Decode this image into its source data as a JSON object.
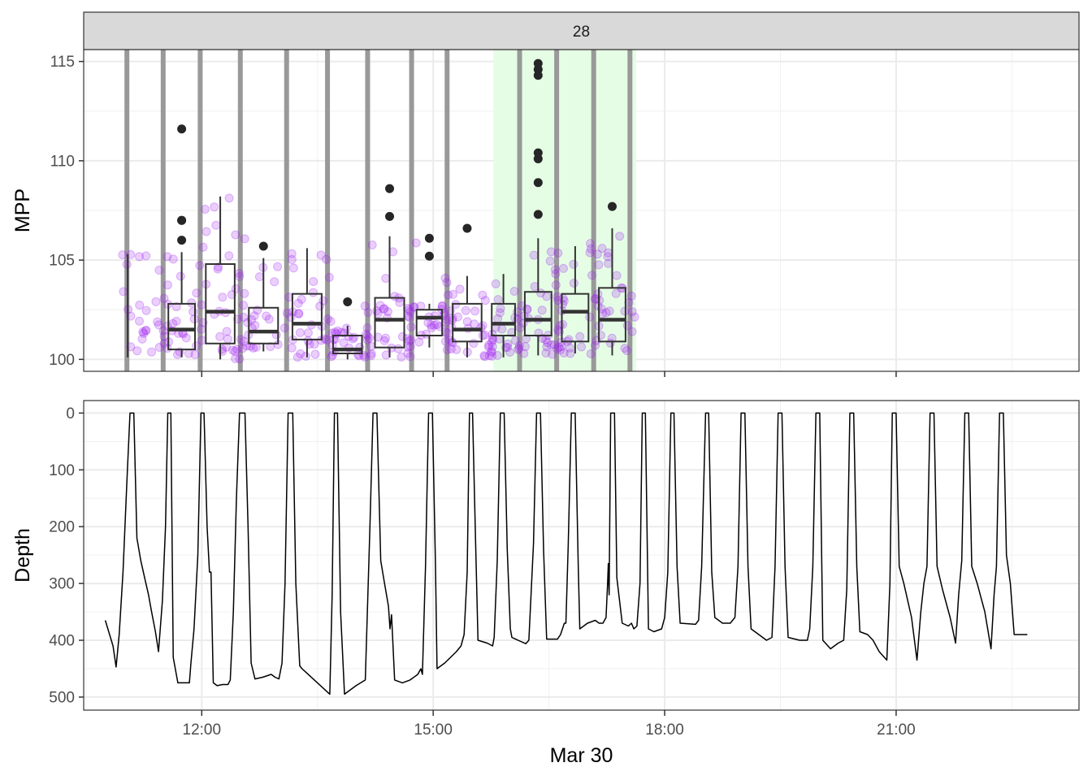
{
  "chart_data": [
    {
      "type": "box",
      "strip_label": "28",
      "ylabel": "MPP",
      "ylim": [
        99.4,
        115.6
      ],
      "yticks": [
        100,
        105,
        110,
        115
      ],
      "x_unit": "hours since 00:00 Mar 30",
      "xlim": [
        10.47,
        23.37
      ],
      "grid": true,
      "highlight_band": {
        "x0": 15.78,
        "x1": 17.63,
        "color": "#e5fde5"
      },
      "surfacing_lines": [
        11.03,
        11.5,
        11.98,
        12.5,
        13.1,
        13.63,
        14.15,
        14.72,
        15.18,
        16.12,
        16.6,
        17.08,
        17.55
      ],
      "box_color": "#333333",
      "point_color": "#a020f0",
      "boxes": [
        {
          "x": 11.03,
          "min": 100.1,
          "q1": null,
          "median": null,
          "q3": null,
          "max": 105.3,
          "outliers": []
        },
        {
          "x": 11.5,
          "min": 100.1,
          "q1": 100.5,
          "median": 101.5,
          "q3": 102.8,
          "max": 105.4,
          "outliers": [
            106.0,
            107.0,
            107.0,
            111.6
          ]
        },
        {
          "x": 11.98,
          "min": 100.0,
          "q1": 100.8,
          "median": 102.4,
          "q3": 104.8,
          "max": 108.2,
          "outliers": []
        },
        {
          "x": 12.5,
          "min": 100.4,
          "q1": 100.8,
          "median": 101.4,
          "q3": 102.6,
          "max": 105.1,
          "outliers": [
            105.7
          ]
        },
        {
          "x": 13.1,
          "min": 100.1,
          "q1": 101.0,
          "median": 101.8,
          "q3": 103.3,
          "max": 105.6,
          "outliers": []
        },
        {
          "x": 13.63,
          "min": 100.0,
          "q1": 100.3,
          "median": 100.5,
          "q3": 101.2,
          "max": 101.7,
          "outliers": [
            102.9
          ]
        },
        {
          "x": 14.15,
          "min": 100.1,
          "q1": 100.6,
          "median": 102.0,
          "q3": 103.1,
          "max": 106.2,
          "outliers": [
            107.2,
            108.6
          ]
        },
        {
          "x": 14.72,
          "min": 100.6,
          "q1": 101.2,
          "median": 102.1,
          "q3": 102.5,
          "max": 102.8,
          "outliers": [
            105.2,
            106.1
          ]
        },
        {
          "x": 15.18,
          "min": 100.1,
          "q1": 100.9,
          "median": 101.5,
          "q3": 102.8,
          "max": 104.2,
          "outliers": [
            106.6
          ]
        },
        {
          "x": 15.7,
          "min": 100.1,
          "q1": 101.2,
          "median": 101.8,
          "q3": 102.8,
          "max": 104.3,
          "outliers": []
        },
        {
          "x": 16.12,
          "min": 100.2,
          "q1": 101.2,
          "median": 102.0,
          "q3": 103.4,
          "max": 106.1,
          "outliers": [
            107.3,
            108.9,
            110.1,
            110.4,
            114.3,
            114.6,
            114.9
          ]
        },
        {
          "x": 16.6,
          "min": 100.3,
          "q1": 100.9,
          "median": 102.4,
          "q3": 103.3,
          "max": 105.7,
          "outliers": []
        },
        {
          "x": 17.08,
          "min": 100.2,
          "q1": 100.9,
          "median": 102.0,
          "q3": 103.6,
          "max": 106.6,
          "outliers": [
            107.7
          ]
        }
      ]
    },
    {
      "type": "line",
      "ylabel": "Depth",
      "xlabel": "Mar 30",
      "ylim": [
        523,
        -22
      ],
      "yticks": [
        0,
        100,
        200,
        300,
        400,
        500
      ],
      "x_unit": "hours since 00:00 Mar 30",
      "xlim": [
        10.47,
        23.37
      ],
      "xtick_hours": [
        12,
        15,
        18,
        21
      ],
      "xtick_labels": [
        "12:00",
        "15:00",
        "18:00",
        "21:00"
      ],
      "grid": true,
      "series": [
        {
          "color": "#000000",
          "points": [
            [
              10.75,
              365
            ],
            [
              10.85,
              410
            ],
            [
              10.89,
              447
            ],
            [
              10.93,
              390
            ],
            [
              10.98,
              280
            ],
            [
              11.03,
              120
            ],
            [
              11.07,
              0
            ],
            [
              11.12,
              0
            ],
            [
              11.16,
              220
            ],
            [
              11.21,
              260
            ],
            [
              11.26,
              290
            ],
            [
              11.31,
              320
            ],
            [
              11.35,
              350
            ],
            [
              11.4,
              385
            ],
            [
              11.44,
              420
            ],
            [
              11.49,
              330
            ],
            [
              11.53,
              200
            ],
            [
              11.56,
              0
            ],
            [
              11.6,
              0
            ],
            [
              11.63,
              430
            ],
            [
              11.69,
              475
            ],
            [
              11.79,
              475
            ],
            [
              11.84,
              475
            ],
            [
              11.86,
              440
            ],
            [
              11.9,
              380
            ],
            [
              11.95,
              250
            ],
            [
              11.99,
              0
            ],
            [
              12.03,
              0
            ],
            [
              12.07,
              200
            ],
            [
              12.1,
              280
            ],
            [
              12.12,
              280
            ],
            [
              12.15,
              475
            ],
            [
              12.2,
              480
            ],
            [
              12.27,
              478
            ],
            [
              12.34,
              478
            ],
            [
              12.37,
              470
            ],
            [
              12.41,
              350
            ],
            [
              12.45,
              150
            ],
            [
              12.49,
              0
            ],
            [
              12.56,
              0
            ],
            [
              12.6,
              200
            ],
            [
              12.64,
              440
            ],
            [
              12.69,
              468
            ],
            [
              12.79,
              465
            ],
            [
              12.9,
              460
            ],
            [
              12.95,
              465
            ],
            [
              13.0,
              468
            ],
            [
              13.04,
              440
            ],
            [
              13.08,
              300
            ],
            [
              13.12,
              0
            ],
            [
              13.18,
              0
            ],
            [
              13.22,
              300
            ],
            [
              13.27,
              445
            ],
            [
              13.3,
              450
            ],
            [
              13.5,
              475
            ],
            [
              13.66,
              495
            ],
            [
              13.69,
              320
            ],
            [
              13.72,
              0
            ],
            [
              13.76,
              0
            ],
            [
              13.8,
              350
            ],
            [
              13.85,
              495
            ],
            [
              14.0,
              480
            ],
            [
              14.12,
              470
            ],
            [
              14.18,
              200
            ],
            [
              14.22,
              0
            ],
            [
              14.27,
              0
            ],
            [
              14.32,
              260
            ],
            [
              14.37,
              300
            ],
            [
              14.42,
              340
            ],
            [
              14.44,
              380
            ],
            [
              14.46,
              355
            ],
            [
              14.5,
              470
            ],
            [
              14.6,
              475
            ],
            [
              14.7,
              470
            ],
            [
              14.8,
              460
            ],
            [
              14.84,
              450
            ],
            [
              14.86,
              460
            ],
            [
              14.9,
              270
            ],
            [
              14.94,
              0
            ],
            [
              14.99,
              0
            ],
            [
              15.03,
              270
            ],
            [
              15.05,
              450
            ],
            [
              15.15,
              440
            ],
            [
              15.3,
              420
            ],
            [
              15.36,
              410
            ],
            [
              15.4,
              390
            ],
            [
              15.44,
              280
            ],
            [
              15.47,
              0
            ],
            [
              15.51,
              0
            ],
            [
              15.55,
              230
            ],
            [
              15.58,
              400
            ],
            [
              15.7,
              405
            ],
            [
              15.77,
              410
            ],
            [
              15.79,
              395
            ],
            [
              15.83,
              260
            ],
            [
              15.87,
              0
            ],
            [
              15.92,
              0
            ],
            [
              15.96,
              240
            ],
            [
              16.0,
              380
            ],
            [
              16.02,
              395
            ],
            [
              16.1,
              400
            ],
            [
              16.2,
              406
            ],
            [
              16.24,
              400
            ],
            [
              16.3,
              230
            ],
            [
              16.34,
              0
            ],
            [
              16.39,
              0
            ],
            [
              16.43,
              240
            ],
            [
              16.47,
              398
            ],
            [
              16.57,
              398
            ],
            [
              16.61,
              398
            ],
            [
              16.65,
              390
            ],
            [
              16.7,
              370
            ],
            [
              16.72,
              370
            ],
            [
              16.75,
              230
            ],
            [
              16.79,
              0
            ],
            [
              16.84,
              0
            ],
            [
              16.88,
              270
            ],
            [
              16.9,
              380
            ],
            [
              17.0,
              370
            ],
            [
              17.1,
              365
            ],
            [
              17.15,
              370
            ],
            [
              17.2,
              370
            ],
            [
              17.24,
              360
            ],
            [
              17.26,
              300
            ],
            [
              17.27,
              265
            ],
            [
              17.28,
              320
            ],
            [
              17.3,
              0
            ],
            [
              17.35,
              0
            ],
            [
              17.38,
              290
            ],
            [
              17.45,
              370
            ],
            [
              17.53,
              375
            ],
            [
              17.57,
              370
            ],
            [
              17.6,
              380
            ],
            [
              17.64,
              375
            ],
            [
              17.68,
              300
            ],
            [
              17.71,
              0
            ],
            [
              17.75,
              0
            ],
            [
              17.79,
              380
            ],
            [
              17.86,
              385
            ],
            [
              17.96,
              380
            ],
            [
              18.0,
              360
            ],
            [
              18.04,
              280
            ],
            [
              18.08,
              0
            ],
            [
              18.12,
              0
            ],
            [
              18.16,
              270
            ],
            [
              18.2,
              370
            ],
            [
              18.4,
              372
            ],
            [
              18.44,
              365
            ],
            [
              18.48,
              270
            ],
            [
              18.53,
              0
            ],
            [
              18.57,
              0
            ],
            [
              18.61,
              280
            ],
            [
              18.65,
              360
            ],
            [
              18.75,
              370
            ],
            [
              18.85,
              370
            ],
            [
              18.91,
              360
            ],
            [
              18.95,
              270
            ],
            [
              18.99,
              0
            ],
            [
              19.04,
              0
            ],
            [
              19.08,
              270
            ],
            [
              19.12,
              380
            ],
            [
              19.22,
              390
            ],
            [
              19.32,
              400
            ],
            [
              19.39,
              395
            ],
            [
              19.43,
              270
            ],
            [
              19.47,
              0
            ],
            [
              19.52,
              0
            ],
            [
              19.56,
              270
            ],
            [
              19.6,
              395
            ],
            [
              19.75,
              400
            ],
            [
              19.85,
              400
            ],
            [
              19.88,
              380
            ],
            [
              19.92,
              270
            ],
            [
              19.96,
              0
            ],
            [
              20.01,
              0
            ],
            [
              20.05,
              400
            ],
            [
              20.15,
              415
            ],
            [
              20.25,
              405
            ],
            [
              20.32,
              400
            ],
            [
              20.36,
              310
            ],
            [
              20.4,
              0
            ],
            [
              20.45,
              0
            ],
            [
              20.49,
              270
            ],
            [
              20.53,
              385
            ],
            [
              20.63,
              390
            ],
            [
              20.7,
              400
            ],
            [
              20.78,
              420
            ],
            [
              20.88,
              435
            ],
            [
              20.92,
              300
            ],
            [
              20.95,
              0
            ],
            [
              21.0,
              0
            ],
            [
              21.04,
              270
            ],
            [
              21.1,
              300
            ],
            [
              21.2,
              360
            ],
            [
              21.27,
              435
            ],
            [
              21.32,
              350
            ],
            [
              21.36,
              300
            ],
            [
              21.4,
              270
            ],
            [
              21.44,
              0
            ],
            [
              21.49,
              0
            ],
            [
              21.53,
              270
            ],
            [
              21.6,
              310
            ],
            [
              21.7,
              360
            ],
            [
              21.77,
              405
            ],
            [
              21.81,
              320
            ],
            [
              21.85,
              260
            ],
            [
              21.89,
              0
            ],
            [
              21.94,
              0
            ],
            [
              21.98,
              270
            ],
            [
              22.05,
              300
            ],
            [
              22.15,
              350
            ],
            [
              22.23,
              415
            ],
            [
              22.27,
              320
            ],
            [
              22.3,
              270
            ],
            [
              22.34,
              0
            ],
            [
              22.39,
              0
            ],
            [
              22.43,
              250
            ],
            [
              22.48,
              300
            ],
            [
              22.53,
              390
            ],
            [
              22.6,
              390
            ],
            [
              22.7,
              390
            ]
          ]
        }
      ]
    }
  ]
}
